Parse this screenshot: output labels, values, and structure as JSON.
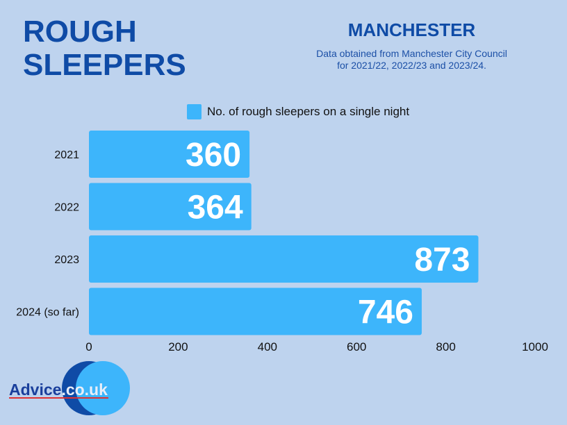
{
  "header": {
    "title_line1": "ROUGH",
    "title_line2": "SLEEPERS",
    "city": "MANCHESTER",
    "subtitle_line1": "Data obtained from Manchester City Council",
    "subtitle_line2": "for 2021/22, 2022/23 and 2023/24."
  },
  "chart_data": {
    "type": "bar",
    "orientation": "horizontal",
    "categories": [
      "2021",
      "2022",
      "2023",
      "2024 (so far)"
    ],
    "series": [
      {
        "name": "No. of rough sleepers on a single night",
        "values": [
          360,
          364,
          873,
          746
        ]
      }
    ],
    "xlim": [
      0,
      1000
    ],
    "xticks": [
      "0",
      "200",
      "400",
      "600",
      "800",
      "1000"
    ],
    "legend_position": "top",
    "grid": false,
    "colors": {
      "bar": "#3db5fb",
      "label": "#ffffff"
    }
  },
  "logo": {
    "text_main": "Advice",
    "text_suffix": ".co.uk"
  }
}
